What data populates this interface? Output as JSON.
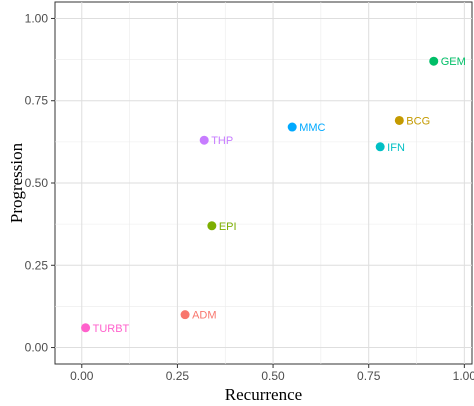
{
  "chart_data": {
    "type": "scatter",
    "title": "",
    "xlabel": "Recurrence",
    "ylabel": "Progression",
    "xlim": [
      -0.07,
      1.02
    ],
    "ylim": [
      -0.05,
      1.05
    ],
    "x_ticks": [
      0.0,
      0.25,
      0.5,
      0.75,
      1.0
    ],
    "x_tick_labels": [
      "0.00",
      "0.25",
      "0.50",
      "0.75",
      "1.00"
    ],
    "y_ticks": [
      0.0,
      0.25,
      0.5,
      0.75,
      1.0
    ],
    "y_tick_labels": [
      "0.00",
      "0.25",
      "0.50",
      "0.75",
      "1.00"
    ],
    "grid": true,
    "legend": "none",
    "points": [
      {
        "label": "ADM",
        "x": 0.27,
        "y": 0.1,
        "color": "#F8766D"
      },
      {
        "label": "BCG",
        "x": 0.83,
        "y": 0.69,
        "color": "#C49A00"
      },
      {
        "label": "EPI",
        "x": 0.34,
        "y": 0.37,
        "color": "#7CAE00"
      },
      {
        "label": "GEM",
        "x": 0.92,
        "y": 0.87,
        "color": "#00BE67"
      },
      {
        "label": "IFN",
        "x": 0.78,
        "y": 0.61,
        "color": "#00BFC4"
      },
      {
        "label": "MMC",
        "x": 0.55,
        "y": 0.67,
        "color": "#00A9FF"
      },
      {
        "label": "THP",
        "x": 0.32,
        "y": 0.63,
        "color": "#C77CFF"
      },
      {
        "label": "TURBT",
        "x": 0.01,
        "y": 0.06,
        "color": "#FF61CC"
      }
    ]
  }
}
